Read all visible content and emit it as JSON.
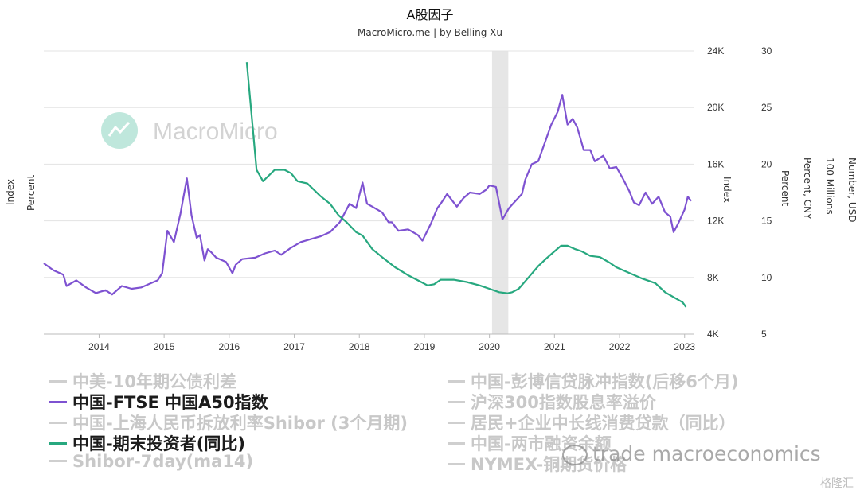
{
  "chart_data": {
    "type": "line",
    "title": "A股因子",
    "subtitle": "MacroMicro.me | by Belling Xu",
    "watermark": "MacroMicro",
    "x_ticks": [
      "2014",
      "2015",
      "2016",
      "2017",
      "2018",
      "2019",
      "2020",
      "2021",
      "2022",
      "2023"
    ],
    "xlim": [
      2013.15,
      2023.15
    ],
    "left_axis_titles": [
      "Index",
      "Percent"
    ],
    "right_axis_titles": [
      "Index",
      "Percent",
      "Percent, CNY",
      "100 Millions",
      "Number, USD"
    ],
    "yaxis_index": {
      "ticks": [
        "4K",
        "8K",
        "12K",
        "16K",
        "20K",
        "24K"
      ],
      "values": [
        4000,
        8000,
        12000,
        16000,
        20000,
        24000
      ],
      "ylim": [
        4000,
        24000
      ]
    },
    "yaxis_percent": {
      "ticks": [
        "5",
        "10",
        "15",
        "20",
        "25",
        "30"
      ],
      "values": [
        5,
        10,
        15,
        20,
        25,
        30
      ],
      "ylim": [
        5,
        30
      ]
    },
    "grid": true,
    "shaded_region": {
      "from": 2020.04,
      "to": 2020.29,
      "color": "#e6e6e6"
    },
    "series": [
      {
        "name": "中国-FTSE 中国A50指数",
        "axis": "index",
        "color": "#7e52d1",
        "x": [
          2013.15,
          2013.3,
          2013.45,
          2013.5,
          2013.65,
          2013.8,
          2013.95,
          2014.1,
          2014.2,
          2014.35,
          2014.5,
          2014.65,
          2014.8,
          2014.9,
          2014.97,
          2015.05,
          2015.15,
          2015.25,
          2015.35,
          2015.42,
          2015.5,
          2015.55,
          2015.62,
          2015.67,
          2015.72,
          2015.8,
          2015.95,
          2016.05,
          2016.1,
          2016.2,
          2016.4,
          2016.55,
          2016.7,
          2016.8,
          2016.95,
          2017.1,
          2017.25,
          2017.4,
          2017.55,
          2017.7,
          2017.85,
          2017.95,
          2018.05,
          2018.12,
          2018.2,
          2018.35,
          2018.45,
          2018.5,
          2018.6,
          2018.75,
          2018.9,
          2018.97,
          2019.1,
          2019.2,
          2019.25,
          2019.35,
          2019.5,
          2019.6,
          2019.7,
          2019.85,
          2019.95,
          2020.0,
          2020.1,
          2020.2,
          2020.3,
          2020.4,
          2020.5,
          2020.55,
          2020.65,
          2020.75,
          2020.85,
          2020.95,
          2021.05,
          2021.12,
          2021.2,
          2021.28,
          2021.35,
          2021.45,
          2021.55,
          2021.62,
          2021.75,
          2021.85,
          2021.95,
          2022.05,
          2022.15,
          2022.22,
          2022.3,
          2022.4,
          2022.5,
          2022.6,
          2022.7,
          2022.78,
          2022.83,
          2022.9,
          2023.0,
          2023.05,
          2023.1
        ],
        "y": [
          9000,
          8500,
          8200,
          7400,
          7800,
          7300,
          6900,
          7100,
          6800,
          7400,
          7200,
          7300,
          7600,
          7800,
          8300,
          11300,
          10500,
          12500,
          15000,
          12400,
          10800,
          11000,
          9200,
          10000,
          9800,
          9400,
          9100,
          8300,
          8900,
          9300,
          9400,
          9700,
          9900,
          9600,
          10100,
          10500,
          10700,
          10900,
          11200,
          11900,
          13200,
          12900,
          14700,
          13200,
          13000,
          12600,
          11900,
          11900,
          11300,
          11400,
          11000,
          10600,
          11800,
          12900,
          13200,
          13900,
          13000,
          13600,
          14000,
          13900,
          14200,
          14500,
          14400,
          12100,
          12900,
          13400,
          13900,
          14900,
          16000,
          16200,
          17500,
          18800,
          19700,
          20900,
          18800,
          19200,
          18600,
          17000,
          17000,
          16200,
          16600,
          15700,
          15800,
          15000,
          14100,
          13300,
          13100,
          14000,
          13200,
          13700,
          12600,
          12300,
          11200,
          11800,
          12800,
          13700,
          13400
        ]
      },
      {
        "name": "中国-期末投资者(同比)",
        "axis": "percent",
        "color": "#27a87f",
        "x": [
          2016.27,
          2016.35,
          2016.42,
          2016.52,
          2016.7,
          2016.85,
          2016.95,
          2017.05,
          2017.2,
          2017.4,
          2017.55,
          2017.68,
          2017.8,
          2017.95,
          2018.05,
          2018.2,
          2018.35,
          2018.55,
          2018.75,
          2018.95,
          2019.05,
          2019.15,
          2019.25,
          2019.45,
          2019.65,
          2019.85,
          2020.0,
          2020.15,
          2020.28,
          2020.35,
          2020.45,
          2020.6,
          2020.75,
          2020.88,
          2021.0,
          2021.1,
          2021.2,
          2021.32,
          2021.42,
          2021.55,
          2021.7,
          2021.85,
          2021.95,
          2022.15,
          2022.35,
          2022.55,
          2022.7,
          2022.85,
          2022.97,
          2023.02
        ],
        "y": [
          29.0,
          24.0,
          19.5,
          18.5,
          19.5,
          19.5,
          19.2,
          18.5,
          18.3,
          17.2,
          16.5,
          15.5,
          14.9,
          14.0,
          13.7,
          12.5,
          11.8,
          10.9,
          10.2,
          9.6,
          9.3,
          9.4,
          9.8,
          9.8,
          9.6,
          9.3,
          9.0,
          8.7,
          8.6,
          8.7,
          9.0,
          10.0,
          11.0,
          11.7,
          12.3,
          12.8,
          12.8,
          12.5,
          12.3,
          11.9,
          11.8,
          11.3,
          10.9,
          10.4,
          9.9,
          9.5,
          8.7,
          8.2,
          7.8,
          7.4
        ]
      }
    ]
  },
  "legend": {
    "left": [
      {
        "label": "中美-10年期公债利差",
        "active": false
      },
      {
        "label": "中国-FTSE 中国A50指数",
        "active": true
      },
      {
        "label": "中国-上海人民币拆放利率Shibor (3个月期)",
        "active": false
      },
      {
        "label": "中国-期末投资者(同比)",
        "active": true
      },
      {
        "label": "Shibor-7day(ma14)",
        "active": false
      }
    ],
    "right": [
      {
        "label": "中国-彭博信贷脉冲指数(后移6个月)",
        "active": false
      },
      {
        "label": "沪深300指数股息率溢价",
        "active": false
      },
      {
        "label": "居民+企业中长线消费贷款（同比）",
        "active": false
      },
      {
        "label": "中国-两市融资余额",
        "active": false
      },
      {
        "label": "NYMEX-铜期货价格",
        "active": false
      }
    ]
  },
  "overlay_watermark": "trade macroeconomics",
  "corner_watermark": "格隆汇"
}
